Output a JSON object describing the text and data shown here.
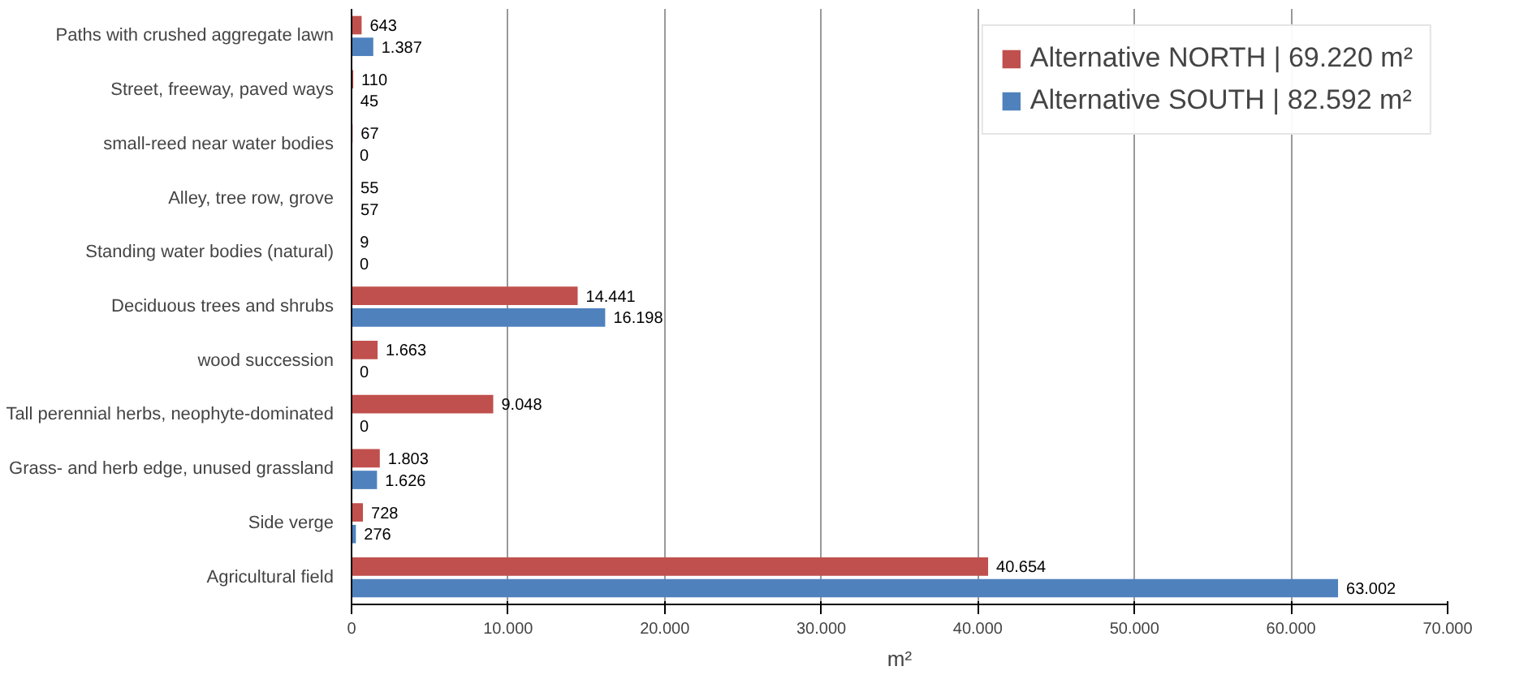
{
  "chart_data": {
    "type": "bar",
    "orientation": "horizontal",
    "xlabel": "m²",
    "categories": [
      "Paths with crushed aggregate lawn",
      "Street, freeway, paved ways",
      "small-reed near water bodies",
      "Alley, tree row, grove",
      "Standing water bodies (natural)",
      "Deciduous trees and shrubs",
      "wood succession",
      "Tall perennial herbs, neophyte-dominated",
      "Grass- and herb edge, unused grassland",
      "Side verge",
      "Agricultural field"
    ],
    "series": [
      {
        "name": "Alternative NORTH | 69.220 m²",
        "color": "#c0504d",
        "values": [
          643,
          110,
          67,
          55,
          9,
          14441,
          1663,
          9048,
          1803,
          728,
          40654
        ],
        "value_labels": [
          "643",
          "110",
          "67",
          "55",
          "9",
          "14.441",
          "1.663",
          "9.048",
          "1.803",
          "728",
          "40.654"
        ]
      },
      {
        "name": "Alternative SOUTH | 82.592 m²",
        "color": "#4f81bd",
        "values": [
          1387,
          45,
          0,
          57,
          0,
          16198,
          0,
          0,
          1626,
          276,
          63002
        ],
        "value_labels": [
          "1.387",
          "45",
          "0",
          "57",
          "0",
          "16.198",
          "0",
          "0",
          "1.626",
          "276",
          "63.002"
        ]
      }
    ],
    "xlim": [
      0,
      70000
    ],
    "xticks": [
      0,
      {
        "value": 10000,
        "label": "10.000"
      },
      {
        "value": 20000,
        "label": "20.000"
      },
      {
        "value": 30000,
        "label": "30.000"
      },
      {
        "value": 40000,
        "label": "40.000"
      },
      {
        "value": 50000,
        "label": "50.000"
      },
      {
        "value": 60000,
        "label": "60.000"
      },
      {
        "value": 70000,
        "label": "70.000"
      }
    ],
    "grid": "x",
    "legend": "top right"
  }
}
